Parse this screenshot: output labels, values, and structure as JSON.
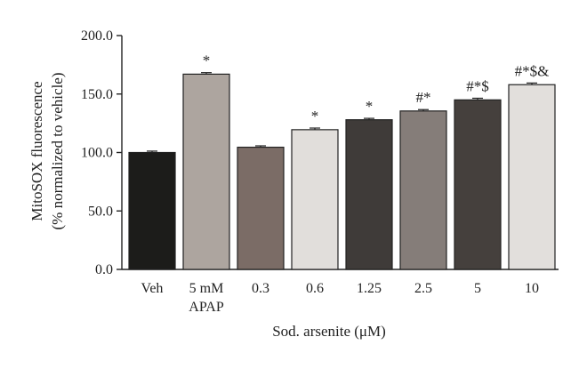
{
  "chart_data": {
    "type": "bar",
    "ylabel_line1": "MitoSOX fluorescence",
    "ylabel_line2": "(% normalized to vehicle)",
    "xlabel": "Sod. arsenite (μM)",
    "ylim": [
      0,
      200
    ],
    "y_ticks": [
      "0.0",
      "50.0",
      "100.0",
      "150.0",
      "200.0"
    ],
    "y_tick_values": [
      0,
      50,
      100,
      150,
      200
    ],
    "categories": [
      {
        "line1": "Veh",
        "line2": ""
      },
      {
        "line1": "5 mM",
        "line2": "APAP"
      },
      {
        "line1": "0.3",
        "line2": ""
      },
      {
        "line1": "0.6",
        "line2": ""
      },
      {
        "line1": "1.25",
        "line2": ""
      },
      {
        "line1": "2.5",
        "line2": ""
      },
      {
        "line1": "5",
        "line2": ""
      },
      {
        "line1": "10",
        "line2": ""
      }
    ],
    "values": [
      100,
      167,
      104.5,
      119.5,
      128,
      135.5,
      145,
      158
    ],
    "errors": [
      1.2,
      1.3,
      1.2,
      1.4,
      1.2,
      1.2,
      1.4,
      1.4
    ],
    "annotations": [
      "",
      "*",
      "",
      "*",
      "*",
      "#*",
      "#*$",
      "#*$&"
    ],
    "colors": [
      "#1c1c1a",
      "#ada59f",
      "#7b6c66",
      "#e1dedb",
      "#3f3b39",
      "#857d79",
      "#45403d",
      "#e2dfdc"
    ]
  }
}
